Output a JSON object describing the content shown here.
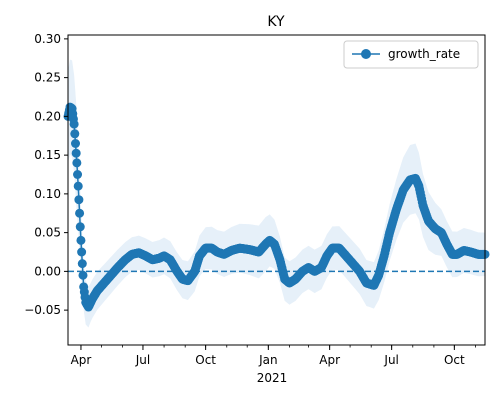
{
  "chart_data": {
    "type": "line",
    "title": "KY",
    "xlabel": "",
    "ylabel": "",
    "x_range": [
      "2020-03-13",
      "2021-11-15"
    ],
    "ylim": [
      -0.095,
      0.305
    ],
    "y_ticks": [
      -0.05,
      0.0,
      0.05,
      0.1,
      0.15,
      0.2,
      0.25,
      0.3
    ],
    "y_tick_labels": [
      "−0.05",
      "0.00",
      "0.05",
      "0.10",
      "0.15",
      "0.20",
      "0.25",
      "0.30"
    ],
    "x_ticks": [
      {
        "date": "2020-04-01",
        "label": "Apr"
      },
      {
        "date": "2020-07-01",
        "label": "Jul"
      },
      {
        "date": "2020-10-01",
        "label": "Oct"
      },
      {
        "date": "2021-01-01",
        "label": "Jan"
      },
      {
        "date": "2021-04-01",
        "label": "Apr"
      },
      {
        "date": "2021-07-01",
        "label": "Jul"
      },
      {
        "date": "2021-10-01",
        "label": "Oct"
      }
    ],
    "x_secondary_label": "2021",
    "reference_line": {
      "y": 0.0,
      "style": "dashed"
    },
    "legend": {
      "position": "top-right",
      "entries": [
        "growth_rate"
      ]
    },
    "series": [
      {
        "name": "growth_rate",
        "color": "#1f77b4",
        "band_color": "#e6f0f9",
        "points": [
          [
            "2020-03-13",
            0.2
          ],
          [
            "2020-03-16",
            0.212
          ],
          [
            "2020-03-19",
            0.21
          ],
          [
            "2020-03-22",
            0.19
          ],
          [
            "2020-03-24",
            0.165
          ],
          [
            "2020-03-26",
            0.14
          ],
          [
            "2020-03-28",
            0.11
          ],
          [
            "2020-03-30",
            0.075
          ],
          [
            "2020-04-01",
            0.04
          ],
          [
            "2020-04-03",
            0.01
          ],
          [
            "2020-04-05",
            -0.02
          ],
          [
            "2020-04-08",
            -0.04
          ],
          [
            "2020-04-12",
            -0.046
          ],
          [
            "2020-04-18",
            -0.035
          ],
          [
            "2020-04-25",
            -0.025
          ],
          [
            "2020-05-05",
            -0.015
          ],
          [
            "2020-05-15",
            -0.005
          ],
          [
            "2020-05-25",
            0.005
          ],
          [
            "2020-06-05",
            0.015
          ],
          [
            "2020-06-15",
            0.022
          ],
          [
            "2020-06-25",
            0.024
          ],
          [
            "2020-07-05",
            0.02
          ],
          [
            "2020-07-15",
            0.015
          ],
          [
            "2020-07-25",
            0.017
          ],
          [
            "2020-08-01",
            0.02
          ],
          [
            "2020-08-10",
            0.015
          ],
          [
            "2020-08-20",
            0.0
          ],
          [
            "2020-08-28",
            -0.01
          ],
          [
            "2020-09-05",
            -0.012
          ],
          [
            "2020-09-15",
            0.0
          ],
          [
            "2020-09-22",
            0.02
          ],
          [
            "2020-10-01",
            0.03
          ],
          [
            "2020-10-10",
            0.03
          ],
          [
            "2020-10-18",
            0.025
          ],
          [
            "2020-10-28",
            0.022
          ],
          [
            "2020-11-08",
            0.027
          ],
          [
            "2020-11-20",
            0.03
          ],
          [
            "2020-12-05",
            0.028
          ],
          [
            "2020-12-18",
            0.025
          ],
          [
            "2020-12-28",
            0.035
          ],
          [
            "2021-01-03",
            0.04
          ],
          [
            "2021-01-10",
            0.035
          ],
          [
            "2021-01-18",
            0.015
          ],
          [
            "2021-01-25",
            -0.01
          ],
          [
            "2021-02-01",
            -0.015
          ],
          [
            "2021-02-10",
            -0.01
          ],
          [
            "2021-02-20",
            0.0
          ],
          [
            "2021-03-01",
            0.005
          ],
          [
            "2021-03-10",
            0.0
          ],
          [
            "2021-03-20",
            0.005
          ],
          [
            "2021-03-28",
            0.02
          ],
          [
            "2021-04-05",
            0.03
          ],
          [
            "2021-04-15",
            0.03
          ],
          [
            "2021-04-25",
            0.02
          ],
          [
            "2021-05-05",
            0.01
          ],
          [
            "2021-05-15",
            0.0
          ],
          [
            "2021-05-25",
            -0.015
          ],
          [
            "2021-06-05",
            -0.018
          ],
          [
            "2021-06-12",
            -0.005
          ],
          [
            "2021-06-20",
            0.02
          ],
          [
            "2021-06-28",
            0.05
          ],
          [
            "2021-07-08",
            0.08
          ],
          [
            "2021-07-18",
            0.105
          ],
          [
            "2021-07-28",
            0.118
          ],
          [
            "2021-08-05",
            0.12
          ],
          [
            "2021-08-10",
            0.11
          ],
          [
            "2021-08-16",
            0.085
          ],
          [
            "2021-08-24",
            0.065
          ],
          [
            "2021-09-03",
            0.055
          ],
          [
            "2021-09-12",
            0.05
          ],
          [
            "2021-09-20",
            0.035
          ],
          [
            "2021-09-28",
            0.022
          ],
          [
            "2021-10-05",
            0.022
          ],
          [
            "2021-10-15",
            0.027
          ],
          [
            "2021-10-25",
            0.025
          ],
          [
            "2021-11-05",
            0.022
          ],
          [
            "2021-11-15",
            0.022
          ]
        ],
        "band_halfwidth": [
          [
            "2020-03-13",
            0.06
          ],
          [
            "2020-03-26",
            0.065
          ],
          [
            "2020-04-05",
            0.03
          ],
          [
            "2020-04-15",
            0.025
          ],
          [
            "2020-06-20",
            0.022
          ],
          [
            "2020-09-05",
            0.025
          ],
          [
            "2020-10-15",
            0.028
          ],
          [
            "2020-12-28",
            0.035
          ],
          [
            "2021-01-25",
            0.028
          ],
          [
            "2021-04-05",
            0.028
          ],
          [
            "2021-06-05",
            0.03
          ],
          [
            "2021-07-28",
            0.045
          ],
          [
            "2021-08-05",
            0.045
          ],
          [
            "2021-09-12",
            0.03
          ],
          [
            "2021-11-15",
            0.028
          ]
        ]
      }
    ]
  }
}
